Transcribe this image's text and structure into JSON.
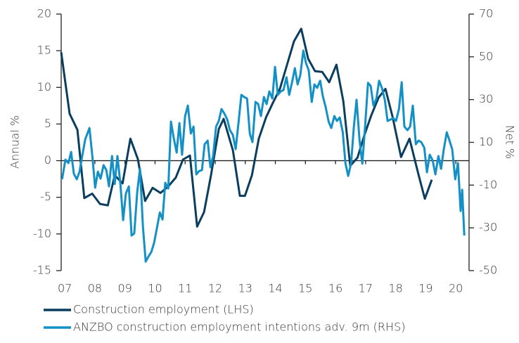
{
  "chart_data": {
    "type": "line",
    "ylabel": "Annual %",
    "y2label": "Net %",
    "xlim": [
      2006.88,
      2020.44
    ],
    "xticks": [
      {
        "value": 2007,
        "label": "07"
      },
      {
        "value": 2008,
        "label": "08"
      },
      {
        "value": 2009,
        "label": "09"
      },
      {
        "value": 2010,
        "label": "10"
      },
      {
        "value": 2011,
        "label": "11"
      },
      {
        "value": 2012,
        "label": "12"
      },
      {
        "value": 2013,
        "label": "13"
      },
      {
        "value": 2014,
        "label": "14"
      },
      {
        "value": 2015,
        "label": "15"
      },
      {
        "value": 2016,
        "label": "16"
      },
      {
        "value": 2017,
        "label": "17"
      },
      {
        "value": 2018,
        "label": "18"
      },
      {
        "value": 2019,
        "label": "19"
      },
      {
        "value": 2020,
        "label": "20"
      }
    ],
    "ylim": [
      -15,
      20
    ],
    "yticks": [
      20,
      15,
      10,
      5,
      0,
      -5,
      -10,
      -15
    ],
    "y2lim": [
      -50,
      70
    ],
    "y2ticks": [
      70,
      50,
      30,
      10,
      -10,
      -30,
      -50
    ],
    "series": [
      {
        "name": "Construction employment (LHS)",
        "color": "#0b3d5e",
        "x": [
          2006.88,
          2007.16,
          2007.42,
          2007.65,
          2007.91,
          2008.17,
          2008.43,
          2008.66,
          2008.92,
          2009.18,
          2009.43,
          2009.67,
          2009.92,
          2010.18,
          2010.44,
          2010.69,
          2010.93,
          2011.16,
          2011.4,
          2011.63,
          2011.86,
          2012.12,
          2012.28,
          2012.59,
          2012.82,
          2012.99,
          2013.22,
          2013.45,
          2013.69,
          2013.92,
          2014.15,
          2014.39,
          2014.62,
          2014.86,
          2015.09,
          2015.32,
          2015.56,
          2015.79,
          2016.03,
          2016.26,
          2016.49,
          2016.73,
          2016.96,
          2017.19,
          2017.43,
          2017.66,
          2017.9,
          2018.18,
          2018.46,
          2018.74,
          2018.97,
          2019.2
        ],
        "values": [
          14.8,
          6.4,
          4.2,
          -5.1,
          -4.5,
          -5.9,
          -6.1,
          -2,
          -3.1,
          3,
          0.2,
          -5.5,
          -3.7,
          -4.4,
          -3.5,
          -2.3,
          0.15,
          0.7,
          -9,
          -7,
          -2,
          4.3,
          5.7,
          1.4,
          -4.8,
          -4.8,
          -2,
          3,
          5.9,
          7.9,
          9.8,
          13.1,
          16.3,
          18,
          13.9,
          12.2,
          12.1,
          10.7,
          13.1,
          8.1,
          -0.7,
          0.4,
          3.5,
          6.2,
          8.6,
          9.8,
          5.9,
          0.5,
          3,
          -1.6,
          -5.2,
          -2.6
        ]
      },
      {
        "name": "ANZBO construction employment intentions adv. 9m (RHS)",
        "color": "#1390c6",
        "axis": "y2",
        "x": [
          2006.91,
          2007.02,
          2007.12,
          2007.21,
          2007.3,
          2007.4,
          2007.49,
          2007.58,
          2007.68,
          2007.82,
          2007.91,
          2008.01,
          2008.1,
          2008.19,
          2008.29,
          2008.38,
          2008.47,
          2008.57,
          2008.66,
          2008.75,
          2008.85,
          2008.94,
          2009.03,
          2009.13,
          2009.22,
          2009.31,
          2009.41,
          2009.5,
          2009.6,
          2009.69,
          2009.78,
          2009.88,
          2009.97,
          2010.06,
          2010.16,
          2010.25,
          2010.34,
          2010.44,
          2010.53,
          2010.62,
          2010.72,
          2010.81,
          2010.9,
          2011.0,
          2011.09,
          2011.19,
          2011.28,
          2011.37,
          2011.47,
          2011.56,
          2011.65,
          2011.75,
          2011.84,
          2011.93,
          2012.03,
          2012.12,
          2012.21,
          2012.31,
          2012.4,
          2012.49,
          2012.59,
          2012.68,
          2012.78,
          2012.87,
          2012.96,
          2013.06,
          2013.15,
          2013.24,
          2013.34,
          2013.43,
          2013.52,
          2013.62,
          2013.71,
          2013.8,
          2013.9,
          2013.99,
          2014.08,
          2014.18,
          2014.27,
          2014.37,
          2014.46,
          2014.55,
          2014.65,
          2014.74,
          2014.83,
          2014.93,
          2015.02,
          2015.11,
          2015.21,
          2015.3,
          2015.39,
          2015.49,
          2015.58,
          2015.67,
          2015.77,
          2015.86,
          2015.96,
          2016.05,
          2016.14,
          2016.24,
          2016.33,
          2016.42,
          2016.52,
          2016.61,
          2016.7,
          2016.8,
          2016.89,
          2016.98,
          2017.08,
          2017.17,
          2017.26,
          2017.36,
          2017.45,
          2017.54,
          2017.64,
          2017.73,
          2017.83,
          2017.92,
          2018.01,
          2018.11,
          2018.2,
          2018.29,
          2018.39,
          2018.48,
          2018.57,
          2018.67,
          2018.76,
          2018.85,
          2018.95,
          2019.04,
          2019.13,
          2019.23,
          2019.32,
          2019.42,
          2019.51,
          2019.6,
          2019.7,
          2019.79,
          2019.88,
          2019.98,
          2020.07,
          2020.16,
          2020.21,
          2020.28
        ],
        "values": [
          -7.3,
          1.9,
          0.3,
          5.5,
          -4.7,
          -7.3,
          -3.7,
          3.6,
          11.4,
          16.7,
          4.2,
          -11.2,
          -3.7,
          -7,
          -0.7,
          -3,
          -10.6,
          3.6,
          -9.5,
          3.6,
          -9.9,
          -26.4,
          -13.9,
          -10.6,
          -33.6,
          -32.6,
          -12.9,
          -2.4,
          -29.7,
          -45.8,
          -43.5,
          -41.2,
          -36.9,
          -30.3,
          -22.8,
          -26.1,
          -8.9,
          -11.6,
          19.7,
          12.1,
          5.2,
          19,
          4.2,
          22.3,
          27.2,
          14.1,
          17.4,
          -5,
          -3.4,
          -3,
          9.1,
          10.8,
          -1.7,
          3.6,
          17.4,
          20,
          25.6,
          23.3,
          20.7,
          15.7,
          13.4,
          6.8,
          20,
          32.2,
          31.2,
          30.5,
          14.1,
          10.1,
          28.9,
          27.9,
          22.3,
          31.2,
          27.9,
          33.8,
          30.5,
          45.3,
          32.2,
          33.8,
          34.5,
          40.4,
          32.2,
          37.8,
          44.7,
          37.1,
          41.4,
          52.9,
          47,
          43.7,
          28.9,
          37.1,
          35.5,
          38.8,
          31.5,
          26.6,
          19.7,
          16.7,
          22.3,
          20,
          21.6,
          14.7,
          0.3,
          -5.7,
          0.3,
          17.4,
          29.9,
          10.8,
          0,
          16.7,
          37.8,
          36.4,
          27.2,
          30.5,
          38.8,
          35.5,
          29.9,
          20,
          20.7,
          21.3,
          20,
          25.6,
          38.1,
          17.4,
          15.7,
          17.4,
          27.2,
          9.1,
          10.8,
          10.1,
          7.5,
          -4,
          4.2,
          1.6,
          -5,
          3.6,
          -2.4,
          6.8,
          14.7,
          10.8,
          6.8,
          -7.3,
          0.3,
          -22.1,
          -12.2,
          -33.6
        ]
      }
    ]
  }
}
